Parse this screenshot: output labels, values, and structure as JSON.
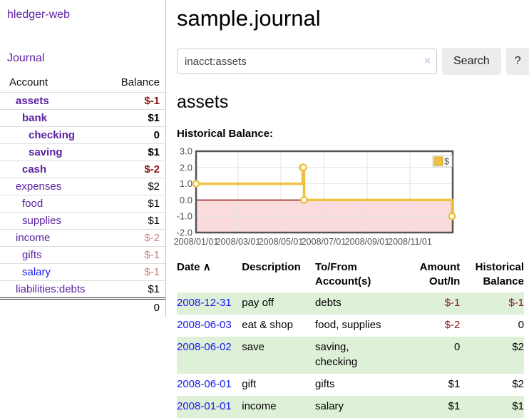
{
  "app": {
    "title": "hledger-web"
  },
  "sidebar": {
    "nav": [
      {
        "label": "Journal"
      }
    ],
    "accounts_table": {
      "headers": [
        "Account",
        "Balance"
      ],
      "rows": [
        {
          "name": "assets",
          "depth": 0,
          "bold": true,
          "balance": "$-1"
        },
        {
          "name": "bank",
          "depth": 1,
          "bold": true,
          "balance": "$1"
        },
        {
          "name": "checking",
          "depth": 2,
          "bold": true,
          "balance": "0"
        },
        {
          "name": "saving",
          "depth": 2,
          "bold": true,
          "balance": "$1"
        },
        {
          "name": "cash",
          "depth": 1,
          "bold": true,
          "balance": "$-2"
        },
        {
          "name": "expenses",
          "depth": 0,
          "bold": false,
          "balance": "$2"
        },
        {
          "name": "food",
          "depth": 1,
          "bold": false,
          "balance": "$1"
        },
        {
          "name": "supplies",
          "depth": 1,
          "bold": false,
          "balance": "$1"
        },
        {
          "name": "income",
          "depth": 0,
          "bold": false,
          "balance": "$-2"
        },
        {
          "name": "gifts",
          "depth": 1,
          "bold": false,
          "balance": "$-1"
        },
        {
          "name": "salary",
          "depth": 1,
          "bold": false,
          "balance": "$-1",
          "unvisited": true
        },
        {
          "name": "liabilities:debts",
          "depth": 0,
          "bold": false,
          "balance": "$1"
        }
      ],
      "total": "0"
    }
  },
  "header": {
    "title": "sample.journal"
  },
  "search": {
    "value": "inacct:assets",
    "clear_icon": "×",
    "button_label": "Search",
    "help_label": "?"
  },
  "account_page": {
    "heading": "assets",
    "chart_label": "Historical Balance:"
  },
  "chart_data": {
    "type": "line",
    "step": true,
    "title": "Historical Balance",
    "series": [
      {
        "name": "$",
        "color": "#edc240",
        "points": [
          [
            "2008-01-01",
            1
          ],
          [
            "2008-06-01",
            2
          ],
          [
            "2008-06-02",
            2
          ],
          [
            "2008-06-03",
            0
          ],
          [
            "2008-12-31",
            -1
          ]
        ]
      }
    ],
    "x_range": [
      "2008-01-01",
      "2009-01-01"
    ],
    "x_tick_dates": [
      "2008-01-01",
      "2008-03-01",
      "2008-05-01",
      "2008-07-01",
      "2008-09-01",
      "2008-11-01"
    ],
    "x_tick_labels": [
      "2008/01/01",
      "2008/03/01",
      "2008/05/01",
      "2008/07/01",
      "2008/09/01",
      "2008/11/01"
    ],
    "ylim": [
      -2,
      3
    ],
    "y_ticks": [
      3,
      2,
      1,
      0,
      -1,
      -2
    ],
    "y_tick_labels": [
      "3.0",
      "2.0",
      "1.0",
      "0.0",
      "-1.0",
      "-2.0"
    ],
    "grid": true,
    "legend_position": "top-right",
    "legend": "$",
    "negative_region_color": "#fbdcdc",
    "zero_line_color": "#8b0000",
    "border_color": "#545454",
    "grid_color": "#e3e3e3",
    "axis_text_color": "#545454"
  },
  "register_table": {
    "sort_icon": "∧",
    "headers": [
      "Date",
      "Description",
      "To/From Account(s)",
      "Amount Out/In",
      "Historical Balance"
    ],
    "rows": [
      {
        "date": "2008-12-31",
        "description": "pay off",
        "accounts": "debts",
        "amount": "$-1",
        "balance": "$-1"
      },
      {
        "date": "2008-06-03",
        "description": "eat & shop",
        "accounts": "food, supplies",
        "amount": "$-2",
        "balance": "0"
      },
      {
        "date": "2008-06-02",
        "description": "save",
        "accounts": "saving, checking",
        "amount": "0",
        "balance": "$2"
      },
      {
        "date": "2008-06-01",
        "description": "gift",
        "accounts": "gifts",
        "amount": "$1",
        "balance": "$2"
      },
      {
        "date": "2008-01-01",
        "description": "income",
        "accounts": "salary",
        "amount": "$1",
        "balance": "$1"
      }
    ]
  }
}
